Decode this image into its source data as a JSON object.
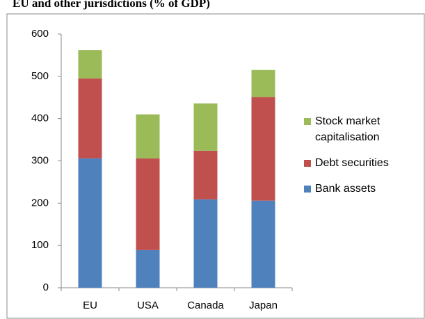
{
  "chart_data": {
    "type": "stacked_bar",
    "title": "EU and other jurisdictions (% of GDP)",
    "categories": [
      "EU",
      "USA",
      "Canada",
      "Japan"
    ],
    "series": [
      {
        "name": "Bank assets",
        "color": "#4f81bd",
        "values": [
          306,
          89,
          209,
          206
        ]
      },
      {
        "name": "Debt securities",
        "color": "#c0504d",
        "values": [
          189,
          217,
          115,
          245
        ]
      },
      {
        "name": "Stock market capitalisation",
        "color": "#9bbb59",
        "values": [
          67,
          104,
          112,
          64
        ]
      }
    ],
    "ylim": [
      0,
      600
    ],
    "yticks": [
      0,
      100,
      200,
      300,
      400,
      500,
      600
    ],
    "grid": false,
    "legend": "right"
  }
}
